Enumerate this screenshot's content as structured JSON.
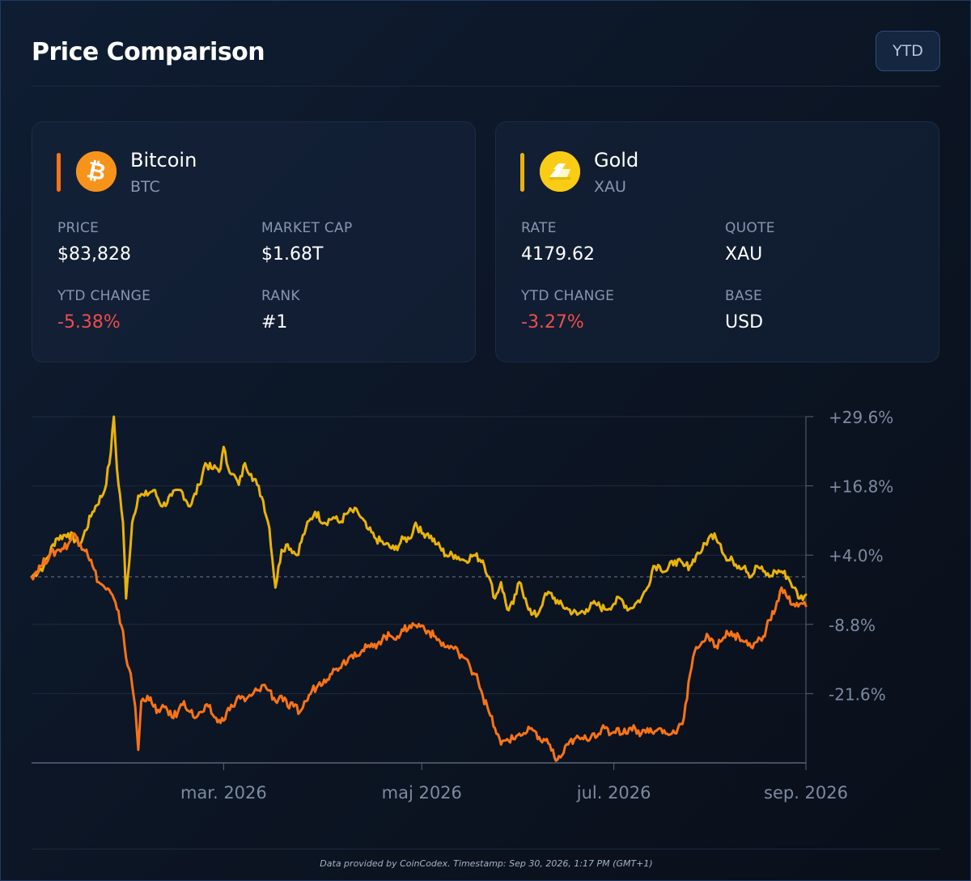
{
  "header": {
    "title": "Price Comparison",
    "range_button": "YTD"
  },
  "colors": {
    "btc": "#f97316",
    "gold": "#eab308",
    "negative": "#ef4d4d",
    "muted": "#8796b0",
    "background": "#0b111c"
  },
  "cards": {
    "btc": {
      "icon": "bitcoin-icon",
      "name": "Bitcoin",
      "symbol": "BTC",
      "stats": {
        "price_label": "PRICE",
        "price_value": "$83,828",
        "market_cap_label": "MARKET CAP",
        "market_cap_value": "$1.68T",
        "ytd_label": "YTD CHANGE",
        "ytd_value": "-5.38%",
        "rank_label": "RANK",
        "rank_value": "#1"
      }
    },
    "gold": {
      "icon": "gold-bars-icon",
      "name": "Gold",
      "symbol": "XAU",
      "stats": {
        "rate_label": "RATE",
        "rate_value": "4179.62",
        "quote_label": "QUOTE",
        "quote_value": "XAU",
        "ytd_label": "YTD CHANGE",
        "ytd_value": "-3.27%",
        "base_label": "BASE",
        "base_value": "USD"
      }
    }
  },
  "chart_data": {
    "type": "line",
    "ylim": [
      -34.4,
      29.6
    ],
    "y_ticks": [
      29.6,
      16.8,
      4.0,
      -8.8,
      -21.6
    ],
    "y_tick_labels": [
      "+29.6%",
      "+16.8%",
      "+4.0%",
      "-8.8%",
      "-21.6%"
    ],
    "x_range_days": [
      0,
      254
    ],
    "x_ticks": [
      63,
      128,
      191,
      254
    ],
    "x_tick_labels": [
      "mar. 2026",
      "maj 2026",
      "jul. 2026",
      "sep. 2026"
    ],
    "baseline": 0,
    "grid": true,
    "series": [
      {
        "color": "#eab308",
        "points": [
          [
            0,
            0
          ],
          [
            4,
            2
          ],
          [
            8,
            7
          ],
          [
            12,
            8
          ],
          [
            16,
            6
          ],
          [
            20,
            12
          ],
          [
            24,
            16
          ],
          [
            26,
            23
          ],
          [
            27,
            29.6
          ],
          [
            28,
            20
          ],
          [
            30,
            10
          ],
          [
            31,
            -4
          ],
          [
            33,
            10
          ],
          [
            35,
            15
          ],
          [
            37,
            15
          ],
          [
            40,
            16
          ],
          [
            43,
            13
          ],
          [
            46,
            15
          ],
          [
            49,
            16
          ],
          [
            52,
            13
          ],
          [
            55,
            17
          ],
          [
            57,
            21
          ],
          [
            59,
            20
          ],
          [
            62,
            20
          ],
          [
            63,
            24
          ],
          [
            64,
            21
          ],
          [
            66,
            19
          ],
          [
            68,
            17
          ],
          [
            70,
            21
          ],
          [
            72,
            19
          ],
          [
            74,
            17
          ],
          [
            76,
            14
          ],
          [
            78,
            9
          ],
          [
            80,
            -2
          ],
          [
            82,
            5
          ],
          [
            84,
            6
          ],
          [
            87,
            4
          ],
          [
            90,
            9
          ],
          [
            93,
            12
          ],
          [
            96,
            10
          ],
          [
            99,
            11
          ],
          [
            101,
            10
          ],
          [
            104,
            12
          ],
          [
            107,
            12
          ],
          [
            110,
            9
          ],
          [
            113,
            7
          ],
          [
            116,
            6
          ],
          [
            119,
            5
          ],
          [
            122,
            7
          ],
          [
            124,
            7
          ],
          [
            126,
            10
          ],
          [
            128,
            8
          ],
          [
            130,
            8
          ],
          [
            133,
            6
          ],
          [
            136,
            4
          ],
          [
            139,
            4
          ],
          [
            142,
            3
          ],
          [
            145,
            4
          ],
          [
            148,
            3
          ],
          [
            150,
            0
          ],
          [
            152,
            -4
          ],
          [
            154,
            -1
          ],
          [
            156,
            -6
          ],
          [
            158,
            -5
          ],
          [
            160,
            -1
          ],
          [
            162,
            -4
          ],
          [
            164,
            -7
          ],
          [
            166,
            -7
          ],
          [
            168,
            -4
          ],
          [
            170,
            -3
          ],
          [
            173,
            -5
          ],
          [
            176,
            -6
          ],
          [
            179,
            -7
          ],
          [
            182,
            -6
          ],
          [
            185,
            -5
          ],
          [
            188,
            -6
          ],
          [
            191,
            -5
          ],
          [
            193,
            -4
          ],
          [
            196,
            -6
          ],
          [
            198,
            -5
          ],
          [
            200,
            -4
          ],
          [
            202,
            -2
          ],
          [
            204,
            2
          ],
          [
            206,
            2
          ],
          [
            208,
            1
          ],
          [
            211,
            3
          ],
          [
            214,
            2
          ],
          [
            216,
            2
          ],
          [
            218,
            4
          ],
          [
            220,
            5
          ],
          [
            222,
            7
          ],
          [
            224,
            8
          ],
          [
            226,
            6
          ],
          [
            228,
            3
          ],
          [
            230,
            3
          ],
          [
            232,
            2
          ],
          [
            234,
            2
          ],
          [
            236,
            0
          ],
          [
            238,
            2
          ],
          [
            240,
            1
          ],
          [
            242,
            0
          ],
          [
            244,
            1
          ],
          [
            246,
            1
          ],
          [
            248,
            0
          ],
          [
            250,
            -2
          ],
          [
            252,
            -4
          ],
          [
            254,
            -3.3
          ]
        ]
      },
      {
        "color": "#f97316",
        "points": [
          [
            0,
            0
          ],
          [
            3,
            2
          ],
          [
            6,
            4
          ],
          [
            9,
            5
          ],
          [
            12,
            6
          ],
          [
            14,
            8
          ],
          [
            16,
            6
          ],
          [
            18,
            5
          ],
          [
            20,
            2
          ],
          [
            22,
            -1
          ],
          [
            24,
            -2
          ],
          [
            26,
            -3
          ],
          [
            28,
            -6
          ],
          [
            30,
            -10
          ],
          [
            31,
            -15
          ],
          [
            32,
            -17
          ],
          [
            33,
            -20
          ],
          [
            34,
            -24
          ],
          [
            35,
            -32
          ],
          [
            36,
            -23
          ],
          [
            38,
            -22
          ],
          [
            40,
            -24
          ],
          [
            42,
            -25
          ],
          [
            44,
            -24
          ],
          [
            46,
            -26
          ],
          [
            48,
            -25
          ],
          [
            50,
            -23
          ],
          [
            52,
            -25
          ],
          [
            54,
            -26
          ],
          [
            56,
            -25
          ],
          [
            58,
            -24
          ],
          [
            60,
            -26
          ],
          [
            62,
            -27
          ],
          [
            64,
            -25
          ],
          [
            66,
            -24
          ],
          [
            68,
            -22
          ],
          [
            70,
            -23
          ],
          [
            72,
            -22
          ],
          [
            74,
            -21
          ],
          [
            76,
            -20
          ],
          [
            78,
            -21
          ],
          [
            80,
            -23
          ],
          [
            82,
            -22
          ],
          [
            84,
            -24
          ],
          [
            86,
            -24
          ],
          [
            88,
            -25
          ],
          [
            90,
            -23
          ],
          [
            92,
            -21
          ],
          [
            94,
            -20
          ],
          [
            96,
            -19
          ],
          [
            98,
            -18
          ],
          [
            100,
            -17
          ],
          [
            102,
            -16
          ],
          [
            104,
            -15
          ],
          [
            106,
            -14
          ],
          [
            108,
            -14
          ],
          [
            110,
            -13
          ],
          [
            112,
            -13
          ],
          [
            114,
            -12
          ],
          [
            116,
            -11
          ],
          [
            118,
            -11
          ],
          [
            120,
            -11
          ],
          [
            122,
            -10
          ],
          [
            124,
            -9
          ],
          [
            126,
            -9
          ],
          [
            128,
            -9
          ],
          [
            130,
            -10
          ],
          [
            132,
            -11
          ],
          [
            134,
            -12
          ],
          [
            136,
            -13
          ],
          [
            138,
            -13
          ],
          [
            140,
            -14
          ],
          [
            142,
            -15
          ],
          [
            144,
            -17
          ],
          [
            146,
            -18
          ],
          [
            148,
            -22
          ],
          [
            150,
            -25
          ],
          [
            152,
            -28
          ],
          [
            154,
            -31
          ],
          [
            156,
            -30
          ],
          [
            158,
            -30
          ],
          [
            160,
            -29
          ],
          [
            162,
            -29
          ],
          [
            164,
            -28
          ],
          [
            166,
            -30
          ],
          [
            168,
            -30
          ],
          [
            170,
            -31
          ],
          [
            172,
            -34
          ],
          [
            174,
            -33
          ],
          [
            176,
            -31
          ],
          [
            178,
            -30
          ],
          [
            180,
            -30
          ],
          [
            182,
            -30
          ],
          [
            184,
            -29
          ],
          [
            186,
            -29
          ],
          [
            188,
            -28
          ],
          [
            190,
            -29
          ],
          [
            192,
            -28
          ],
          [
            194,
            -29
          ],
          [
            196,
            -28
          ],
          [
            198,
            -28
          ],
          [
            200,
            -29
          ],
          [
            202,
            -28
          ],
          [
            204,
            -29
          ],
          [
            206,
            -28
          ],
          [
            208,
            -29
          ],
          [
            210,
            -29
          ],
          [
            212,
            -28
          ],
          [
            214,
            -26
          ],
          [
            216,
            -18
          ],
          [
            218,
            -13
          ],
          [
            220,
            -12
          ],
          [
            222,
            -11
          ],
          [
            224,
            -13
          ],
          [
            226,
            -12
          ],
          [
            228,
            -10
          ],
          [
            230,
            -11
          ],
          [
            232,
            -11
          ],
          [
            234,
            -12
          ],
          [
            236,
            -13
          ],
          [
            238,
            -12
          ],
          [
            240,
            -11
          ],
          [
            242,
            -8
          ],
          [
            244,
            -6
          ],
          [
            246,
            -2
          ],
          [
            248,
            -4
          ],
          [
            250,
            -5
          ],
          [
            252,
            -5
          ],
          [
            254,
            -5.4
          ]
        ]
      }
    ]
  },
  "footer": {
    "text": "Data provided by CoinCodex. Timestamp: Sep 30, 2026, 1:17 PM (GMT+1)"
  }
}
